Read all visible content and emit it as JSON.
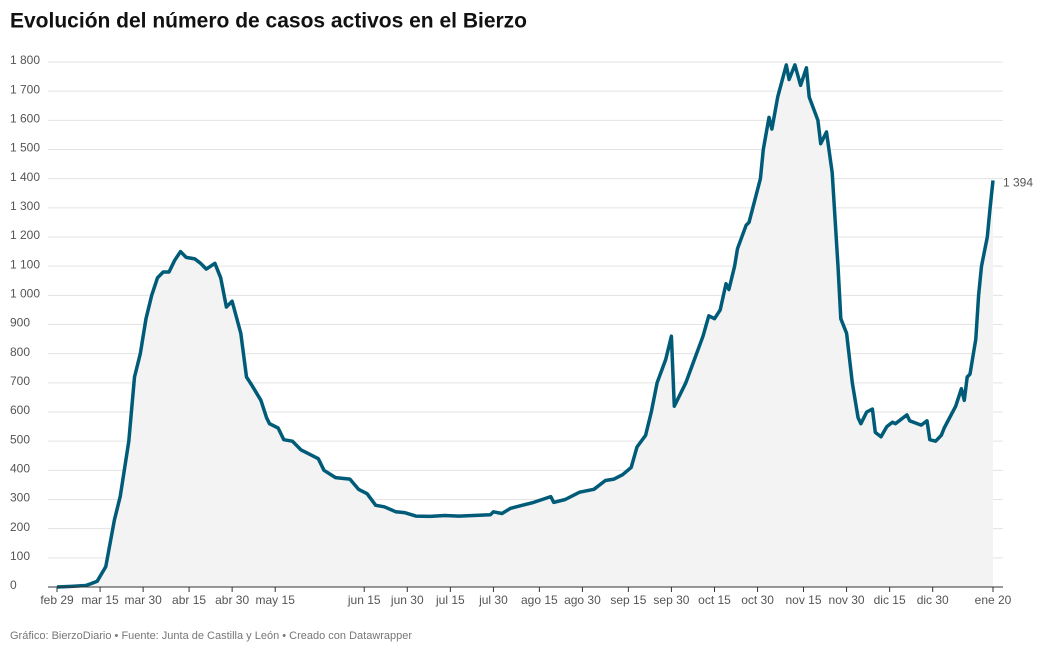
{
  "chart_data": {
    "type": "line",
    "title": "Evolución del número de casos activos en el Bierzo",
    "footer": "Gráfico: BierzoDiario • Fuente: Junta de Castilla y León • Creado con Datawrapper",
    "x": [
      0,
      5,
      10,
      12,
      14,
      17,
      20,
      22,
      25,
      27,
      29,
      31,
      33,
      35,
      37,
      39,
      41,
      43,
      45,
      48,
      50,
      52,
      55,
      57,
      59,
      61,
      64,
      66,
      68,
      71,
      73,
      74,
      77,
      79,
      82,
      85,
      87,
      91,
      93,
      97,
      102,
      105,
      108,
      111,
      114,
      118,
      121,
      125,
      130,
      135,
      140,
      145,
      151,
      152,
      155,
      158,
      162,
      166,
      172,
      173,
      177,
      182,
      187,
      191,
      194,
      197,
      200,
      202,
      205,
      207,
      209,
      212,
      214,
      215,
      219,
      222,
      225,
      227,
      229,
      231,
      233,
      234,
      236,
      237,
      240,
      241,
      245,
      246,
      248,
      249,
      251,
      254,
      255,
      257,
      259,
      261,
      262,
      265,
      266,
      268,
      270,
      272,
      273,
      275,
      277,
      279,
      280,
      282,
      284,
      285,
      287,
      289,
      291,
      292,
      296,
      297,
      301,
      303,
      304,
      306,
      308,
      309,
      313,
      315,
      316,
      317,
      318,
      320,
      321,
      322,
      324,
      325,
      326
    ],
    "series": [
      {
        "name": "Casos activos",
        "color": "#005b78",
        "values": [
          0,
          2,
          5,
          12,
          20,
          70,
          230,
          310,
          500,
          720,
          800,
          920,
          1000,
          1060,
          1080,
          1080,
          1120,
          1150,
          1130,
          1125,
          1110,
          1090,
          1110,
          1060,
          960,
          980,
          870,
          720,
          690,
          640,
          580,
          560,
          545,
          505,
          500,
          470,
          460,
          440,
          400,
          375,
          370,
          335,
          320,
          280,
          275,
          258,
          255,
          243,
          242,
          245,
          243,
          245,
          248,
          258,
          252,
          270,
          280,
          290,
          310,
          290,
          300,
          325,
          335,
          365,
          370,
          385,
          410,
          480,
          520,
          600,
          700,
          780,
          860,
          620,
          700,
          780,
          860,
          930,
          920,
          950,
          1040,
          1020,
          1100,
          1160,
          1240,
          1250,
          1400,
          1500,
          1610,
          1570,
          1680,
          1790,
          1740,
          1790,
          1720,
          1780,
          1680,
          1600,
          1520,
          1560,
          1420,
          1100,
          920,
          870,
          700,
          580,
          560,
          600,
          610,
          530,
          515,
          550,
          565,
          560,
          590,
          570,
          555,
          570,
          505,
          500,
          520,
          545,
          620,
          680,
          640,
          720,
          730,
          850,
          1000,
          1100,
          1200,
          1300,
          1394
        ],
        "end_label": "1 394"
      }
    ],
    "xlim": [
      0,
      326
    ],
    "xticks": [
      {
        "value": 0,
        "label": "feb 29"
      },
      {
        "value": 15,
        "label": "mar 15"
      },
      {
        "value": 30,
        "label": "mar 30"
      },
      {
        "value": 46,
        "label": "abr 15"
      },
      {
        "value": 61,
        "label": "abr 30"
      },
      {
        "value": 76,
        "label": "may 15"
      },
      {
        "value": 107,
        "label": "jun 15"
      },
      {
        "value": 122,
        "label": "jun 30"
      },
      {
        "value": 137,
        "label": "jul 15"
      },
      {
        "value": 152,
        "label": "jul 30"
      },
      {
        "value": 168,
        "label": "ago 15"
      },
      {
        "value": 183,
        "label": "ago 30"
      },
      {
        "value": 199,
        "label": "sep 15"
      },
      {
        "value": 214,
        "label": "sep 30"
      },
      {
        "value": 229,
        "label": "oct 15"
      },
      {
        "value": 244,
        "label": "oct 30"
      },
      {
        "value": 260,
        "label": "nov 15"
      },
      {
        "value": 275,
        "label": "nov 30"
      },
      {
        "value": 290,
        "label": "dic 15"
      },
      {
        "value": 305,
        "label": "dic 30"
      },
      {
        "value": 326,
        "label": "ene 20"
      }
    ],
    "ylim": [
      0,
      1800
    ],
    "yticks": [
      0,
      100,
      200,
      300,
      400,
      500,
      600,
      700,
      800,
      900,
      {
        "value": 1000,
        "label": "1 000"
      },
      {
        "value": 1100,
        "label": "1 100"
      },
      {
        "value": 1200,
        "label": "1 200"
      },
      {
        "value": 1300,
        "label": "1 300"
      },
      {
        "value": 1400,
        "label": "1 400"
      },
      {
        "value": 1500,
        "label": "1 500"
      },
      {
        "value": 1600,
        "label": "1 600"
      },
      {
        "value": 1700,
        "label": "1 700"
      },
      {
        "value": 1800,
        "label": "1 800"
      }
    ],
    "grid": true,
    "area_fill": "#f3f3f3"
  }
}
